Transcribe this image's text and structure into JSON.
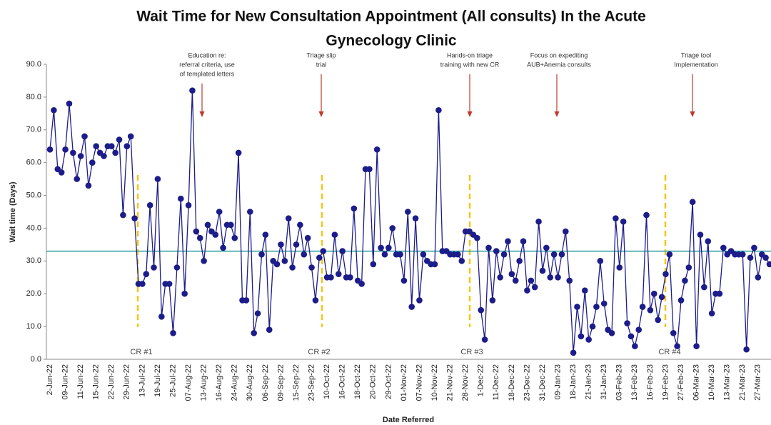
{
  "chart_data": {
    "type": "line",
    "title": [
      "Wait Time for New Consultation Appointment (All consults) In the Acute",
      "Gynecology Clinic"
    ],
    "y_label": "Wait time (Days)",
    "x_label": "Date Referred",
    "categories": [
      "2-Jun-22",
      null,
      null,
      null,
      "09-Jun-22",
      null,
      null,
      null,
      "11-Jun-22",
      null,
      null,
      null,
      "15-Jun-22",
      null,
      null,
      null,
      "22-Jun-22",
      null,
      null,
      null,
      "29-Jun-22",
      null,
      null,
      null,
      "13-Jul-22",
      null,
      null,
      null,
      "19-Jul-22",
      null,
      null,
      null,
      "25-Jul-22",
      null,
      null,
      null,
      "07-Aug-22",
      null,
      null,
      null,
      "13-Aug-22",
      null,
      null,
      null,
      "16-Aug-22",
      null,
      null,
      null,
      "24-Aug-22",
      null,
      null,
      null,
      "30-Aug-22",
      null,
      null,
      null,
      "06-Sep-22",
      null,
      null,
      null,
      "09-Sep-22",
      null,
      null,
      null,
      "15-Sep-22",
      null,
      null,
      null,
      "23-Sep-22",
      null,
      null,
      null,
      "10-Oct-22",
      null,
      null,
      null,
      "16-Oct-22",
      null,
      null,
      null,
      "18-Oct-22",
      null,
      null,
      null,
      "20-Oct-22",
      null,
      null,
      null,
      "29-Oct-22",
      null,
      null,
      null,
      "01-Nov-22",
      null,
      null,
      null,
      "07-Nov-22",
      null,
      null,
      null,
      "10-Nov-22",
      null,
      null,
      null,
      "21-Nov-22",
      null,
      null,
      null,
      "28-Nov-22",
      null,
      null,
      null,
      "1-Dec-22",
      null,
      null,
      null,
      "11-Dec-22",
      null,
      null,
      null,
      "18-Dec-22",
      null,
      null,
      null,
      "23-Dec-22",
      null,
      null,
      null,
      "31-Dec-22",
      null,
      null,
      null,
      "09-Jan-23",
      null,
      null,
      null,
      "18-Jan-23",
      null,
      null,
      null,
      "21-Jan-23",
      null,
      null,
      null,
      "31-Jan-23",
      null,
      null,
      null,
      "03-Feb-23",
      null,
      null,
      null,
      "13-Feb-23",
      null,
      null,
      null,
      "16-Feb-23",
      null,
      null,
      null,
      "19-Feb-23",
      null,
      null,
      null,
      "27-Feb-23",
      null,
      null,
      null,
      "06-Mar-23",
      null,
      null,
      null,
      "10-Mar-23",
      null,
      null,
      null,
      "13-Mar-23",
      null,
      null,
      null,
      "21-Mar-23",
      null,
      null,
      null,
      "27-Mar-23",
      null,
      null,
      null
    ],
    "values": [
      64,
      76,
      58,
      57,
      64,
      78,
      63,
      55,
      62,
      68,
      53,
      60,
      65,
      63,
      62,
      65,
      65,
      63,
      67,
      44,
      65,
      68,
      43,
      23,
      23,
      26,
      47,
      28,
      55,
      13,
      23,
      23,
      8,
      28,
      49,
      20,
      47,
      82,
      39,
      37,
      30,
      41,
      39,
      38,
      45,
      34,
      41,
      41,
      37,
      63,
      18,
      18,
      45,
      8,
      14,
      32,
      38,
      9,
      30,
      29,
      35,
      30,
      43,
      28,
      35,
      41,
      32,
      37,
      28,
      18,
      31,
      33,
      25,
      25,
      38,
      26,
      33,
      25,
      25,
      46,
      24,
      23,
      58,
      58,
      29,
      64,
      34,
      32,
      34,
      40,
      32,
      32,
      24,
      45,
      16,
      43,
      18,
      32,
      30,
      29,
      29,
      76,
      33,
      33,
      32,
      32,
      32,
      30,
      39,
      39,
      38,
      37,
      15,
      6,
      34,
      18,
      33,
      25,
      32,
      36,
      26,
      24,
      30,
      36,
      21,
      24,
      22,
      42,
      27,
      34,
      25,
      32,
      25,
      32,
      39,
      24,
      2,
      16,
      7,
      21,
      6,
      10,
      16,
      30,
      17,
      9,
      8,
      43,
      28,
      42,
      11,
      7,
      4,
      9,
      16,
      44,
      15,
      20,
      12,
      19,
      26,
      32,
      8,
      4,
      18,
      24,
      28,
      48,
      4,
      38,
      22,
      36,
      14,
      20,
      20,
      34,
      32,
      33,
      32,
      32,
      32,
      3,
      31,
      34,
      25,
      32,
      31,
      29
    ],
    "color": "#1c1c8a",
    "center_line": 33,
    "center_line_color": "#2a9d9f",
    "ylim": [
      0,
      90
    ],
    "yticks": [
      {
        "value": 0,
        "label": "0.0"
      },
      {
        "value": 10,
        "label": "10.0"
      },
      {
        "value": 20,
        "label": "20.0"
      },
      {
        "value": 30,
        "label": "30.0"
      },
      {
        "value": 40,
        "label": "40.0"
      },
      {
        "value": 50,
        "label": "50.0"
      },
      {
        "value": 60,
        "label": "60.0"
      },
      {
        "value": 70,
        "label": "70.0"
      },
      {
        "value": 80,
        "label": "80.0"
      },
      {
        "value": 90,
        "label": "90.0"
      }
    ],
    "change_labels": [
      "CR #1",
      "CR #2",
      "CR #3",
      "CR #4"
    ],
    "annotations": [
      [
        "Education re:",
        "referral criteria, use",
        "of templated letters"
      ],
      [
        "Triage slip",
        "trial"
      ],
      [
        "Hands-on triage",
        "training with new CR"
      ],
      [
        "Focus on expediting",
        "AUB+Anemia consults"
      ],
      [
        "Triage tool",
        "Implementation"
      ]
    ]
  }
}
